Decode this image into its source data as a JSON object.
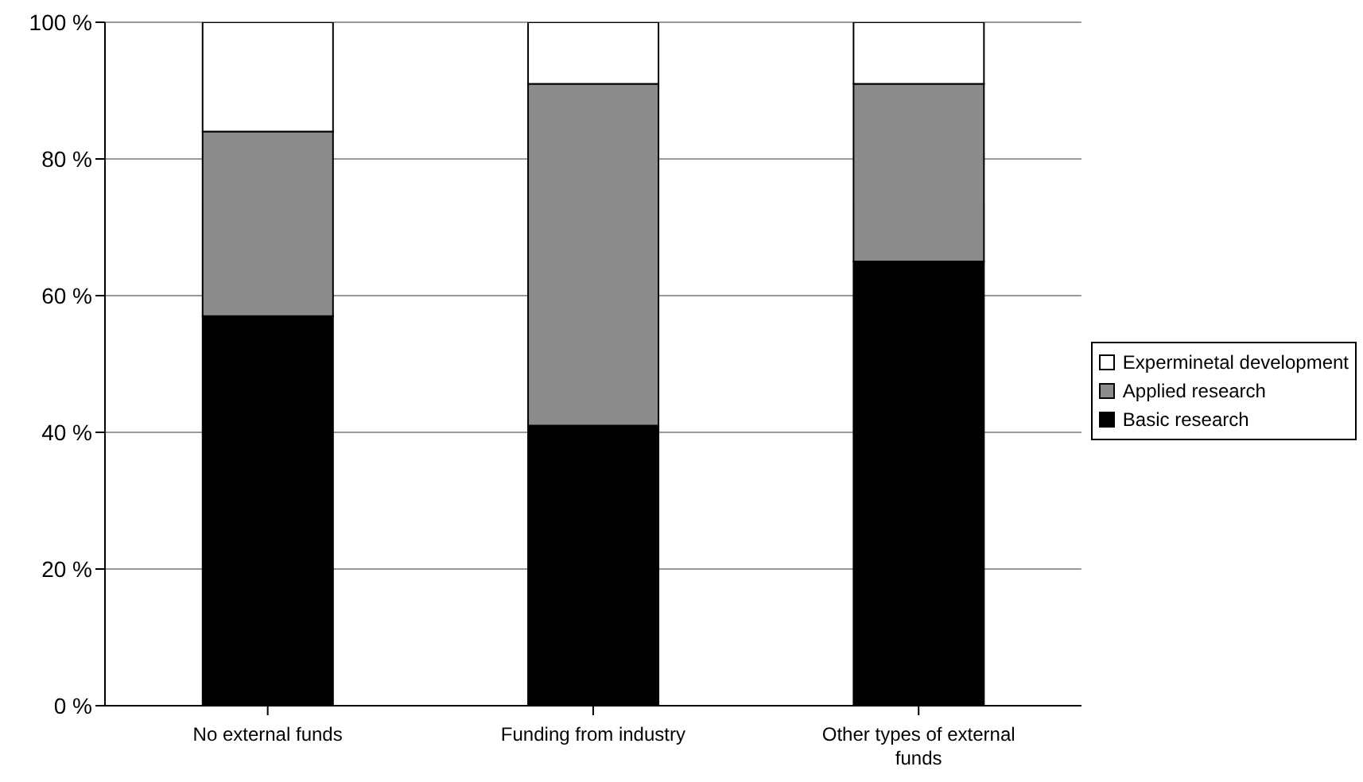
{
  "chart_data": {
    "type": "bar",
    "stacked": true,
    "categories": [
      "No external funds",
      "Funding from industry",
      "Other types of external funds"
    ],
    "series": [
      {
        "name": "Basic research",
        "color": "#000000",
        "values": [
          57,
          41,
          65
        ]
      },
      {
        "name": "Applied research",
        "color": "#8c8c8c",
        "values": [
          27,
          50,
          26
        ]
      },
      {
        "name": "Experminetal development",
        "color": "#ffffff",
        "values": [
          16,
          9,
          9
        ]
      }
    ],
    "ylim": [
      0,
      100
    ],
    "yticks": [
      {
        "value": 0,
        "label": "0 %"
      },
      {
        "value": 20,
        "label": "20 %"
      },
      {
        "value": 40,
        "label": "40 %"
      },
      {
        "value": 60,
        "label": "60 %"
      },
      {
        "value": 80,
        "label": "80 %"
      },
      {
        "value": 100,
        "label": "100 %"
      }
    ],
    "grid": "y",
    "legend": "right"
  }
}
